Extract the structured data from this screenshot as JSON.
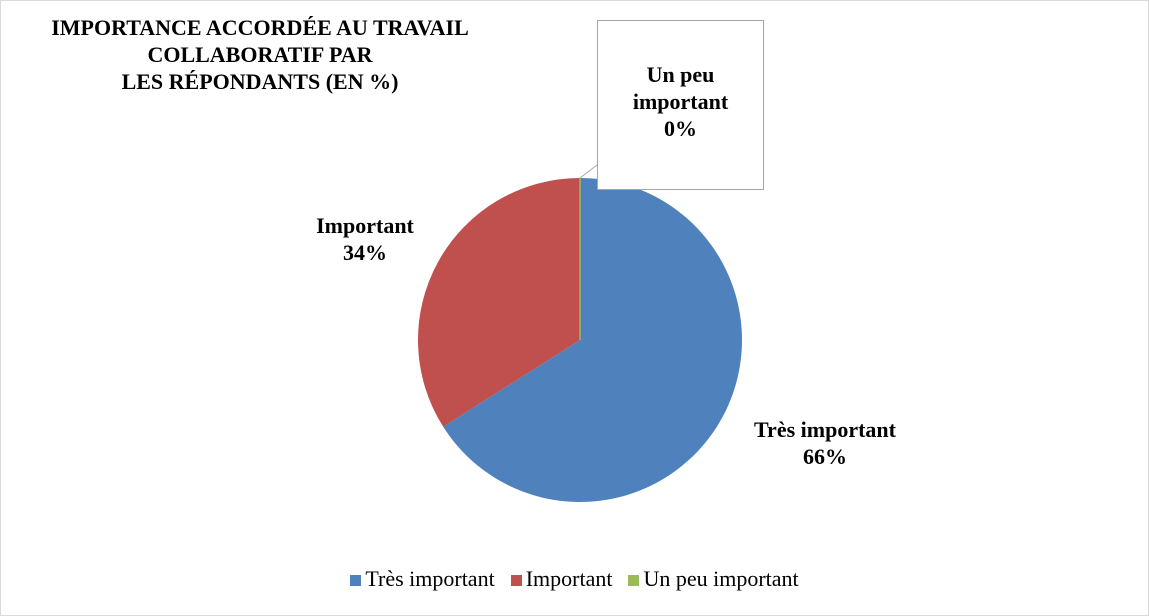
{
  "chart_data": {
    "type": "pie",
    "title": [
      "IMPORTANCE ACCORDÉE AU TRAVAIL",
      "COLLABORATIF PAR",
      "LES RÉPONDANTS (EN %)"
    ],
    "categories": [
      "Très important",
      "Important",
      "Un peu important"
    ],
    "values": [
      66,
      34,
      0
    ],
    "value_labels": [
      "66%",
      "34%",
      "0%"
    ],
    "colors": [
      "#4f81bd",
      "#c0504d",
      "#9bbb59"
    ],
    "legend": "bottom"
  }
}
